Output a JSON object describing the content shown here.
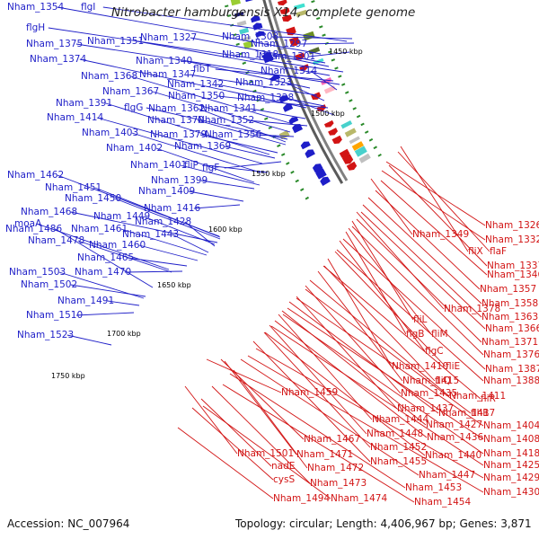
{
  "title": "Nitrobacter hamburgensis X14, complete genome",
  "footer": {
    "accession": "Accession: NC_007964",
    "summary": "Topology: circular; Length: 4,406,967 bp; Genes: 3,871"
  },
  "colors": {
    "forward_gene": "#1e1ec8",
    "reverse_gene": "#d21414",
    "backbone": "#808080",
    "tick": "#2a8a2a"
  },
  "ticks": [
    "1450 kbp",
    "1500 kbp",
    "1550 kbp",
    "1600 kbp",
    "1650 kbp",
    "1700 kbp",
    "1750 kbp"
  ],
  "blue_labels": [
    "Nham_1354",
    "flgI",
    "Nham_1327",
    "Nham_1308",
    "Nham_1297",
    "flgH",
    "Nham_1375",
    "Nham_1351",
    "Nham_1318",
    "Nham_1301",
    "Nham_1374",
    "Nham_1340",
    "flbT",
    "Nham_1314",
    "Nham_1368",
    "Nham_1347",
    "Nham_1323",
    "Nham_1367",
    "Nham_1342",
    "Nham_1391",
    "flgG",
    "Nham_1350",
    "Nham_1328",
    "Nham_1362",
    "Nham_1341",
    "Nham_1414",
    "Nham_1370",
    "Nham_1352",
    "Nham_1403",
    "Nham_1379",
    "Nham_1356",
    "Nham_1402",
    "Nham_1369",
    "Nham_1401",
    "fliP",
    "flgF",
    "Nham_1462",
    "Nham_1399",
    "Nham_1451",
    "Nham_1409",
    "Nham_1450",
    "moaA",
    "Nham_1416",
    "Nham_1468",
    "Nham_1449",
    "Nham_1428",
    "Nham_1486",
    "Nham_1461",
    "Nham_1478",
    "Nham_1443",
    "Nham_1460",
    "Nham_1465",
    "Nham_1503",
    "Nham_1470",
    "Nham_1502",
    "Nham_1491",
    "Nham_1510",
    "Nham_1523"
  ],
  "red_labels": [
    "Nham_1326",
    "Nham_1349",
    "Nham_1332",
    "fliX",
    "flaF",
    "Nham_1337",
    "Nham_1346",
    "Nham_1357",
    "Nham_1378",
    "Nham_1358",
    "Nham_1363",
    "fliL",
    "Nham_1366",
    "flgB",
    "fliM",
    "Nham_1371",
    "flgC",
    "Nham_1376",
    "Nham_1410",
    "fliE",
    "Nham_1387",
    "Nham_1415",
    "fliQ",
    "Nham_1388",
    "Nham_1459",
    "Nham_1435",
    "Nham_1411",
    "fliR",
    "Nham_1437",
    "Nham_1417",
    "flhB",
    "Nham_1444",
    "Nham_1427",
    "Nham_1404",
    "Nham_1448",
    "Nham_1408",
    "Nham_1467",
    "Nham_1436",
    "Nham_1452",
    "Nham_1418",
    "Nham_1501",
    "Nham_1471",
    "Nham_1455",
    "Nham_1440",
    "Nham_1425",
    "nadE",
    "Nham_1472",
    "Nham_1447",
    "Nham_1429",
    "cysS",
    "Nham_1473",
    "Nham_1453",
    "Nham_1430",
    "Nham_1494",
    "Nham_1474",
    "Nham_1454"
  ]
}
